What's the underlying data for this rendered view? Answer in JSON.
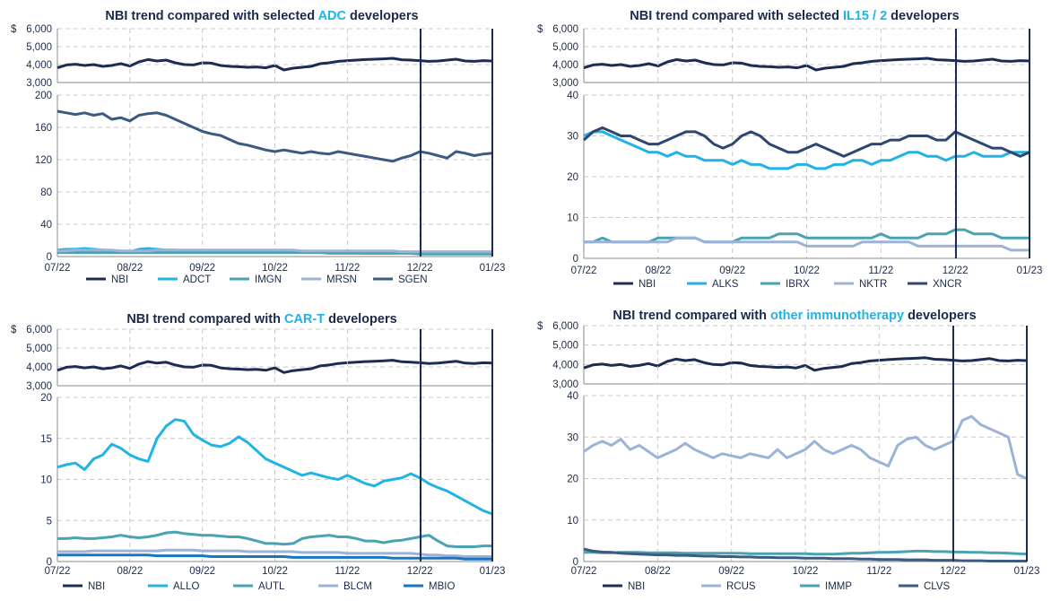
{
  "x_ticks": [
    "07/22",
    "08/22",
    "09/22",
    "10/22",
    "11/22",
    "12/22",
    "01/23"
  ],
  "nbi_axis": {
    "prefix": "$",
    "ticks": [
      "6,000",
      "5,000",
      "4,000",
      "3,000"
    ]
  },
  "colors": {
    "NBI": "#1c2d55",
    "ADCT": "#22b3e6",
    "IMGN": "#4aa3b3",
    "MRSN": "#9cb3d8",
    "SGEN": "#3d5a80",
    "ALKS": "#22b3e6",
    "IBRX": "#4aa3b3",
    "NKTR": "#9cb3d8",
    "XNCR": "#2e4670",
    "ALLO": "#22b3e6",
    "AUTL": "#4aa3b3",
    "BLCM": "#9cb3d8",
    "MBIO": "#1976c2",
    "RCUS": "#9cb3d8",
    "IMMP": "#4aa3b3",
    "CLVS": "#3d5a80"
  },
  "chart_data": [
    {
      "type": "line",
      "title_prefix": "NBI trend compared with selected ",
      "title_highlight": "ADC",
      "title_suffix": " developers",
      "nbi_series": {
        "name": "NBI",
        "ylim": [
          3000,
          6000
        ],
        "values": [
          3820,
          3980,
          4020,
          3950,
          4000,
          3900,
          3950,
          4050,
          3920,
          4150,
          4280,
          4200,
          4250,
          4100,
          4000,
          3980,
          4100,
          4080,
          3950,
          3900,
          3880,
          3850,
          3870,
          3820,
          3950,
          3700,
          3800,
          3850,
          3900,
          4050,
          4100,
          4180,
          4220,
          4250,
          4280,
          4300,
          4320,
          4350,
          4270,
          4250,
          4220,
          4180,
          4200,
          4250,
          4300,
          4200,
          4180,
          4220,
          4200
        ]
      },
      "ylim": [
        0,
        200
      ],
      "y_ticks": [
        "0",
        "40",
        "80",
        "120",
        "160",
        "200"
      ],
      "series": [
        {
          "name": "ADCT",
          "values": [
            8,
            9,
            9,
            10,
            9,
            8,
            7,
            7,
            6,
            9,
            10,
            9,
            8,
            8,
            7,
            7,
            7,
            6,
            6,
            6,
            6,
            6,
            5,
            5,
            5,
            5,
            5,
            5,
            5,
            5,
            4,
            4,
            4,
            4,
            4,
            4,
            4,
            4,
            5,
            5,
            5,
            5,
            4,
            4,
            4,
            4,
            4,
            4,
            4
          ]
        },
        {
          "name": "IMGN",
          "values": [
            5,
            5,
            5,
            5,
            5,
            5,
            5,
            5,
            5,
            5,
            5,
            5,
            5,
            5,
            5,
            5,
            5,
            5,
            5,
            5,
            5,
            5,
            5,
            5,
            5,
            5,
            5,
            5,
            5,
            5,
            5,
            5,
            5,
            5,
            4,
            4,
            4,
            4,
            4,
            4,
            3,
            3,
            3,
            3,
            3,
            3,
            3,
            3,
            3
          ]
        },
        {
          "name": "MRSN",
          "values": [
            7,
            7,
            8,
            8,
            8,
            8,
            8,
            7,
            7,
            7,
            7,
            8,
            8,
            8,
            8,
            8,
            8,
            8,
            8,
            8,
            8,
            8,
            8,
            8,
            8,
            8,
            8,
            7,
            7,
            7,
            7,
            7,
            7,
            7,
            7,
            7,
            7,
            7,
            6,
            6,
            6,
            6,
            6,
            6,
            6,
            6,
            6,
            6,
            6
          ]
        },
        {
          "name": "SGEN",
          "values": [
            180,
            178,
            176,
            178,
            175,
            177,
            170,
            172,
            168,
            175,
            177,
            178,
            175,
            170,
            165,
            160,
            155,
            152,
            150,
            145,
            140,
            138,
            135,
            132,
            130,
            132,
            130,
            128,
            130,
            128,
            127,
            130,
            128,
            126,
            124,
            122,
            120,
            118,
            122,
            125,
            130,
            128,
            125,
            122,
            130,
            128,
            125,
            127,
            128
          ]
        }
      ]
    },
    {
      "type": "line",
      "title_prefix": "NBI trend compared with selected ",
      "title_highlight": "IL15 / 2",
      "title_suffix": " developers",
      "nbi_series": {
        "name": "NBI",
        "ylim": [
          3000,
          6000
        ],
        "values": [
          3820,
          3980,
          4020,
          3950,
          4000,
          3900,
          3950,
          4050,
          3920,
          4150,
          4280,
          4200,
          4250,
          4100,
          4000,
          3980,
          4100,
          4080,
          3950,
          3900,
          3880,
          3850,
          3870,
          3820,
          3950,
          3700,
          3800,
          3850,
          3900,
          4050,
          4100,
          4180,
          4220,
          4250,
          4280,
          4300,
          4320,
          4350,
          4270,
          4250,
          4220,
          4180,
          4200,
          4250,
          4300,
          4200,
          4180,
          4220,
          4200
        ]
      },
      "ylim": [
        0,
        40
      ],
      "y_ticks": [
        "0",
        "10",
        "20",
        "30",
        "40"
      ],
      "series": [
        {
          "name": "ALKS",
          "values": [
            30,
            31,
            31,
            30,
            29,
            28,
            27,
            26,
            26,
            25,
            26,
            25,
            25,
            24,
            24,
            24,
            23,
            24,
            23,
            23,
            22,
            22,
            22,
            23,
            23,
            22,
            22,
            23,
            23,
            24,
            24,
            23,
            24,
            24,
            25,
            26,
            26,
            25,
            25,
            24,
            25,
            25,
            26,
            25,
            25,
            25,
            26,
            26,
            26
          ]
        },
        {
          "name": "IBRX",
          "values": [
            4,
            4,
            5,
            4,
            4,
            4,
            4,
            4,
            5,
            5,
            5,
            5,
            5,
            4,
            4,
            4,
            4,
            5,
            5,
            5,
            5,
            6,
            6,
            6,
            5,
            5,
            5,
            5,
            5,
            5,
            5,
            5,
            6,
            5,
            5,
            5,
            5,
            6,
            6,
            6,
            7,
            7,
            6,
            6,
            6,
            5,
            5,
            5,
            5
          ]
        },
        {
          "name": "NKTR",
          "values": [
            4,
            4,
            4,
            4,
            4,
            4,
            4,
            4,
            4,
            4,
            5,
            5,
            5,
            4,
            4,
            4,
            4,
            4,
            4,
            4,
            4,
            4,
            4,
            4,
            3,
            3,
            3,
            3,
            3,
            3,
            4,
            4,
            4,
            4,
            4,
            4,
            3,
            3,
            3,
            3,
            3,
            3,
            3,
            3,
            3,
            3,
            2,
            2,
            2
          ]
        },
        {
          "name": "XNCR",
          "values": [
            29,
            31,
            32,
            31,
            30,
            30,
            29,
            28,
            28,
            29,
            30,
            31,
            31,
            30,
            28,
            27,
            28,
            30,
            31,
            30,
            28,
            27,
            26,
            26,
            27,
            28,
            27,
            26,
            25,
            26,
            27,
            28,
            28,
            29,
            29,
            30,
            30,
            30,
            29,
            29,
            31,
            30,
            29,
            28,
            27,
            27,
            26,
            25,
            26
          ]
        }
      ]
    },
    {
      "type": "line",
      "title_prefix": "NBI trend compared with ",
      "title_highlight": "CAR-T",
      "title_suffix": " developers",
      "nbi_series": {
        "name": "NBI",
        "ylim": [
          3000,
          6000
        ],
        "values": [
          3820,
          3980,
          4020,
          3950,
          4000,
          3900,
          3950,
          4050,
          3920,
          4150,
          4280,
          4200,
          4250,
          4100,
          4000,
          3980,
          4100,
          4080,
          3950,
          3900,
          3880,
          3850,
          3870,
          3820,
          3950,
          3700,
          3800,
          3850,
          3900,
          4050,
          4100,
          4180,
          4220,
          4250,
          4280,
          4300,
          4320,
          4350,
          4270,
          4250,
          4220,
          4180,
          4200,
          4250,
          4300,
          4200,
          4180,
          4220,
          4200
        ]
      },
      "ylim": [
        0,
        20
      ],
      "y_ticks": [
        "0",
        "5",
        "10",
        "15",
        "20"
      ],
      "series": [
        {
          "name": "ALLO",
          "values": [
            11.5,
            11.8,
            12.0,
            11.2,
            12.5,
            13.0,
            14.3,
            13.8,
            13.0,
            12.5,
            12.2,
            15.0,
            16.5,
            17.3,
            17.1,
            15.5,
            14.8,
            14.2,
            14.0,
            14.4,
            15.2,
            14.5,
            13.5,
            12.5,
            12.0,
            11.5,
            11.0,
            10.5,
            10.8,
            10.5,
            10.2,
            10.0,
            10.5,
            10.0,
            9.5,
            9.2,
            9.8,
            10.0,
            10.2,
            10.7,
            10.2,
            9.5,
            9.0,
            8.6,
            8.0,
            7.4,
            6.8,
            6.2,
            5.8
          ]
        },
        {
          "name": "AUTL",
          "values": [
            2.8,
            2.8,
            2.9,
            2.8,
            2.8,
            2.9,
            3.0,
            3.2,
            3.0,
            2.9,
            3.0,
            3.2,
            3.5,
            3.6,
            3.4,
            3.3,
            3.2,
            3.2,
            3.1,
            3.0,
            3.0,
            2.8,
            2.5,
            2.2,
            2.2,
            2.1,
            2.2,
            2.8,
            3.0,
            3.1,
            3.2,
            3.0,
            3.0,
            2.8,
            2.5,
            2.5,
            2.3,
            2.5,
            2.6,
            2.8,
            3.0,
            3.2,
            2.5,
            1.9,
            1.8,
            1.8,
            1.8,
            1.9,
            1.9
          ]
        },
        {
          "name": "BLCM",
          "values": [
            1.2,
            1.2,
            1.2,
            1.2,
            1.3,
            1.3,
            1.3,
            1.3,
            1.3,
            1.3,
            1.3,
            1.3,
            1.4,
            1.4,
            1.4,
            1.4,
            1.3,
            1.3,
            1.3,
            1.3,
            1.3,
            1.2,
            1.2,
            1.2,
            1.2,
            1.2,
            1.2,
            1.1,
            1.1,
            1.1,
            1.1,
            1.1,
            1.0,
            1.0,
            1.0,
            1.0,
            1.0,
            1.0,
            1.0,
            1.0,
            0.9,
            0.8,
            0.8,
            0.7,
            0.7,
            0.6,
            0.6,
            0.6,
            0.6
          ]
        },
        {
          "name": "MBIO",
          "values": [
            0.8,
            0.8,
            0.8,
            0.8,
            0.8,
            0.8,
            0.8,
            0.8,
            0.8,
            0.8,
            0.8,
            0.7,
            0.7,
            0.7,
            0.7,
            0.7,
            0.7,
            0.6,
            0.6,
            0.6,
            0.6,
            0.6,
            0.6,
            0.6,
            0.6,
            0.6,
            0.5,
            0.5,
            0.5,
            0.5,
            0.5,
            0.5,
            0.5,
            0.5,
            0.5,
            0.5,
            0.5,
            0.4,
            0.4,
            0.4,
            0.4,
            0.4,
            0.4,
            0.4,
            0.4,
            0.3,
            0.3,
            0.3,
            0.3
          ]
        }
      ]
    },
    {
      "type": "line",
      "title_prefix": "NBI trend compared with ",
      "title_highlight": "other immunotherapy",
      "title_suffix": " developers",
      "nbi_series": {
        "name": "NBI",
        "ylim": [
          3000,
          6000
        ],
        "values": [
          3820,
          3980,
          4020,
          3950,
          4000,
          3900,
          3950,
          4050,
          3920,
          4150,
          4280,
          4200,
          4250,
          4100,
          4000,
          3980,
          4100,
          4080,
          3950,
          3900,
          3880,
          3850,
          3870,
          3820,
          3950,
          3700,
          3800,
          3850,
          3900,
          4050,
          4100,
          4180,
          4220,
          4250,
          4280,
          4300,
          4320,
          4350,
          4270,
          4250,
          4220,
          4180,
          4200,
          4250,
          4300,
          4200,
          4180,
          4220,
          4200
        ]
      },
      "ylim": [
        0,
        40
      ],
      "y_ticks": [
        "0",
        "10",
        "20",
        "30",
        "40"
      ],
      "series": [
        {
          "name": "RCUS",
          "values": [
            26.5,
            28,
            29,
            28,
            29.5,
            27,
            28,
            26.5,
            25,
            26,
            27,
            28.5,
            27,
            26,
            25,
            26,
            25.5,
            25,
            26,
            25.5,
            25,
            27,
            25,
            26,
            27,
            29,
            27,
            26,
            27,
            28,
            27,
            25,
            24,
            23,
            28,
            29.5,
            30,
            28,
            27,
            28,
            29,
            34,
            35,
            33,
            32,
            31,
            30,
            21,
            20
          ]
        },
        {
          "name": "IMMP",
          "values": [
            2.2,
            2.2,
            2.1,
            2.1,
            2.2,
            2.2,
            2.2,
            2.1,
            2.1,
            2.1,
            2.1,
            2.0,
            2.0,
            2.0,
            2.0,
            2.0,
            2.0,
            2.0,
            1.9,
            1.9,
            1.9,
            1.9,
            1.9,
            1.9,
            1.9,
            1.8,
            1.8,
            1.8,
            1.9,
            2.0,
            2.0,
            2.1,
            2.2,
            2.2,
            2.3,
            2.4,
            2.5,
            2.5,
            2.4,
            2.4,
            2.3,
            2.3,
            2.2,
            2.2,
            2.1,
            2.1,
            2.0,
            1.9,
            1.8
          ]
        },
        {
          "name": "CLVS",
          "values": [
            3.0,
            2.5,
            2.3,
            2.2,
            2.0,
            1.9,
            1.8,
            1.7,
            1.6,
            1.6,
            1.5,
            1.5,
            1.4,
            1.3,
            1.3,
            1.2,
            1.2,
            1.1,
            1.1,
            1.0,
            1.0,
            0.9,
            0.9,
            0.9,
            0.8,
            0.8,
            0.8,
            0.7,
            0.7,
            0.7,
            0.6,
            0.6,
            0.5,
            0.5,
            0.5,
            0.4,
            0.4,
            0.4,
            0.3,
            0.3,
            0.3,
            0.2,
            0.2,
            0.2,
            0.1,
            0.1,
            0.1,
            0.1,
            0.1
          ]
        }
      ]
    }
  ]
}
